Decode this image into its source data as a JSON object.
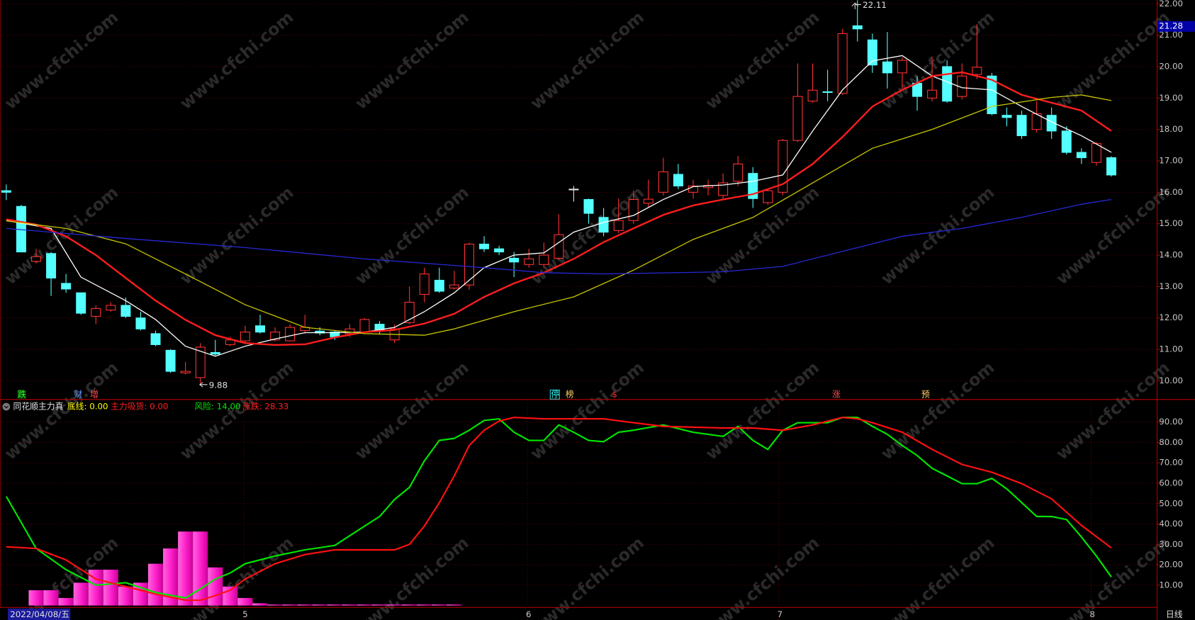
{
  "chart_data": [
    {
      "type": "candlestick",
      "open": [
        16.05,
        15.55,
        13.8,
        14.05,
        13.1,
        12.8,
        12.05,
        12.25,
        12.4,
        12.0,
        11.5,
        10.97,
        10.25,
        10.1,
        10.9,
        11.15,
        11.27,
        11.75,
        11.3,
        11.27,
        11.6,
        11.58,
        11.55,
        11.5,
        11.55,
        11.8,
        11.3,
        11.85,
        12.75,
        13.2,
        12.95,
        13.05,
        14.35,
        14.2,
        13.9,
        13.7,
        13.7,
        13.9,
        16.1,
        15.77,
        15.2,
        14.78,
        15.1,
        15.65,
        16.0,
        16.57,
        16.0,
        16.15,
        15.9,
        16.35,
        16.6,
        15.67,
        16.0,
        17.65,
        18.9,
        19.2,
        19.15,
        21.3,
        20.85,
        20.15,
        19.8,
        19.47,
        19.0,
        20.0,
        19.05,
        19.75,
        19.7,
        18.45,
        18.45,
        18.0,
        18.45,
        17.95,
        17.27,
        16.95,
        17.1
      ],
      "high": [
        16.25,
        15.6,
        14.2,
        14.1,
        13.4,
        12.8,
        12.4,
        12.5,
        12.65,
        12.2,
        11.6,
        11.0,
        10.6,
        11.2,
        11.3,
        11.4,
        11.75,
        12.1,
        11.7,
        11.8,
        12.1,
        11.7,
        11.6,
        11.8,
        12.0,
        11.9,
        11.8,
        13.0,
        13.6,
        13.6,
        13.5,
        14.4,
        14.6,
        14.3,
        14.1,
        14.2,
        14.4,
        15.3,
        16.2,
        15.8,
        15.5,
        15.8,
        16.05,
        16.4,
        17.1,
        16.9,
        16.4,
        16.4,
        16.6,
        17.15,
        16.8,
        16.1,
        17.7,
        20.1,
        20.1,
        19.9,
        21.2,
        22.11,
        21.05,
        21.1,
        20.3,
        19.7,
        20.3,
        20.2,
        20.1,
        21.35,
        19.8,
        18.7,
        18.6,
        18.9,
        18.7,
        18.1,
        17.4,
        17.6,
        17.15
      ],
      "low": [
        15.75,
        14.1,
        13.75,
        12.7,
        12.8,
        12.1,
        11.8,
        12.2,
        12.0,
        11.6,
        11.1,
        10.25,
        10.2,
        9.88,
        10.8,
        11.1,
        11.2,
        11.5,
        11.25,
        11.25,
        11.5,
        11.45,
        11.3,
        11.4,
        11.5,
        11.5,
        11.2,
        11.8,
        12.5,
        12.8,
        12.9,
        12.9,
        14.1,
        14.0,
        13.3,
        13.6,
        13.6,
        13.85,
        15.7,
        15.0,
        14.6,
        14.7,
        15.0,
        15.5,
        15.9,
        16.1,
        15.8,
        15.9,
        15.8,
        16.2,
        15.5,
        15.6,
        15.9,
        17.6,
        18.85,
        18.9,
        19.1,
        20.8,
        19.8,
        19.3,
        19.3,
        18.6,
        18.9,
        18.85,
        18.95,
        19.6,
        18.45,
        18.1,
        17.7,
        17.9,
        17.7,
        17.2,
        16.9,
        16.85,
        16.5
      ],
      "close": [
        16.0,
        14.1,
        13.95,
        13.27,
        12.92,
        12.15,
        12.3,
        12.4,
        12.05,
        11.65,
        11.15,
        10.3,
        10.3,
        11.07,
        10.85,
        11.3,
        11.55,
        11.55,
        11.55,
        11.7,
        11.7,
        11.52,
        11.4,
        11.65,
        11.95,
        11.62,
        11.65,
        12.5,
        13.4,
        12.85,
        13.05,
        14.35,
        14.2,
        14.1,
        13.78,
        13.88,
        14.0,
        14.65,
        16.1,
        15.33,
        14.73,
        15.1,
        15.77,
        15.78,
        16.65,
        16.2,
        16.2,
        16.22,
        16.3,
        16.9,
        15.8,
        16.05,
        17.65,
        19.05,
        19.25,
        19.18,
        21.05,
        21.2,
        20.05,
        19.8,
        20.2,
        19.05,
        19.25,
        18.9,
        19.7,
        19.98,
        18.5,
        18.38,
        17.8,
        18.5,
        17.95,
        17.27,
        17.1,
        17.55,
        16.55
      ],
      "up_color": "#ff3232",
      "down_color": "#54ffff",
      "flat_color": "#e0e0e0",
      "lines": [
        {
          "color": "#ffffff",
          "x": [
            0,
            3,
            5,
            8,
            10,
            12,
            14,
            16,
            18,
            20,
            22,
            24,
            26,
            28,
            30,
            32,
            34,
            36,
            38,
            40,
            42,
            44,
            46,
            48,
            50,
            52,
            54,
            56,
            58,
            60,
            62,
            64,
            66,
            68,
            70,
            72,
            74
          ],
          "values": [
            15.1,
            14.85,
            13.3,
            12.55,
            11.95,
            11.1,
            10.78,
            11.1,
            11.33,
            11.53,
            11.53,
            11.55,
            11.7,
            12.2,
            12.8,
            13.6,
            14.0,
            14.07,
            14.73,
            15.04,
            15.26,
            15.77,
            16.18,
            16.23,
            16.35,
            16.55,
            17.95,
            19.26,
            20.18,
            20.35,
            19.7,
            19.33,
            19.26,
            18.73,
            18.24,
            17.8,
            17.27
          ]
        },
        {
          "color": "#ff1e1e",
          "x": [
            0,
            2,
            4,
            6,
            8,
            10,
            12,
            14,
            16,
            18,
            20,
            22,
            24,
            26,
            28,
            30,
            32,
            34,
            36,
            38,
            40,
            42,
            44,
            46,
            48,
            50,
            52,
            54,
            56,
            58,
            60,
            62,
            64,
            66,
            68,
            70,
            72,
            74
          ],
          "values": [
            15.14,
            14.97,
            14.6,
            14.0,
            13.27,
            12.55,
            11.94,
            11.45,
            11.2,
            11.14,
            11.16,
            11.38,
            11.55,
            11.62,
            11.82,
            12.13,
            12.67,
            13.1,
            13.44,
            13.88,
            14.41,
            14.85,
            15.28,
            15.58,
            15.77,
            15.94,
            16.26,
            16.9,
            17.76,
            18.73,
            19.26,
            19.7,
            19.82,
            19.58,
            19.1,
            18.85,
            18.6,
            17.95
          ]
        },
        {
          "color": "#c8c800",
          "x": [
            0,
            4,
            8,
            12,
            16,
            20,
            24,
            28,
            30,
            34,
            38,
            42,
            46,
            50,
            54,
            58,
            62,
            66,
            70,
            72,
            74
          ],
          "values": [
            15.09,
            14.85,
            14.36,
            13.4,
            12.42,
            11.7,
            11.5,
            11.45,
            11.65,
            12.2,
            12.67,
            13.52,
            14.5,
            15.2,
            16.3,
            17.4,
            18.0,
            18.73,
            19.02,
            19.1,
            18.92
          ]
        },
        {
          "color": "#2828d8",
          "x": [
            0,
            8,
            16,
            24,
            32,
            36,
            40,
            48,
            52,
            56,
            60,
            64,
            68,
            72,
            74
          ],
          "values": [
            14.85,
            14.53,
            14.24,
            13.88,
            13.6,
            13.44,
            13.4,
            13.47,
            13.64,
            14.12,
            14.6,
            14.85,
            15.2,
            15.62,
            15.77
          ]
        }
      ],
      "ylim": [
        9.44,
        22.12
      ],
      "yticks": [
        {
          "value": 10,
          "label": "10.00"
        },
        {
          "value": 11,
          "label": "11.00"
        },
        {
          "value": 12,
          "label": "12.00"
        },
        {
          "value": 13,
          "label": "13.00"
        },
        {
          "value": 14,
          "label": "14.00"
        },
        {
          "value": 15,
          "label": "15.00"
        },
        {
          "value": 16,
          "label": "16.00"
        },
        {
          "value": 17,
          "label": "17.00"
        },
        {
          "value": 18,
          "label": "18.00"
        },
        {
          "value": 19,
          "label": "19.00"
        },
        {
          "value": 20,
          "label": "20.00"
        },
        {
          "value": 21,
          "label": "21.00"
        },
        {
          "value": 22,
          "label": "22.00"
        }
      ],
      "grid": true,
      "price_tag": {
        "value": 21.28,
        "label": "21.28"
      },
      "annotations": [
        "22.11",
        "9.88"
      ],
      "signals": [
        "跌",
        "财",
        "增",
        "停",
        "榜",
        "$",
        "涨",
        "预"
      ]
    },
    {
      "type": "indicator",
      "title": "同花顺主力真",
      "legend": [
        {
          "text": "底线: 0.00",
          "color": "#ffff00"
        },
        {
          "text": "主力吸货: 0.00",
          "color": "#ff2020"
        },
        {
          "text": "风险: 14.00",
          "color": "#00e600"
        },
        {
          "text": "涨跌: 28.33",
          "color": "#ff2020"
        }
      ],
      "histogram": {
        "color": "#ff33cc",
        "values": [
          0,
          0,
          7.5,
          7.5,
          3.7,
          11.2,
          17.6,
          17.6,
          9.3,
          11.2,
          20.5,
          28,
          36.3,
          36.3,
          18.7,
          9.3,
          3.7,
          1.1,
          0.5,
          0.5,
          0.5,
          0.5,
          0.5,
          0.5,
          0.5,
          0.5,
          0.5,
          0.5,
          0.5,
          0.5,
          0.5,
          0,
          0,
          0,
          0,
          0,
          0,
          0,
          0,
          0,
          0,
          0,
          0,
          0,
          0,
          0,
          0,
          0,
          0,
          0,
          0,
          0,
          0,
          0,
          0,
          0,
          0,
          0,
          0,
          0,
          0,
          0,
          0,
          0,
          0,
          0,
          0,
          0,
          0,
          0,
          0,
          0,
          0,
          0,
          0
        ]
      },
      "series": [
        {
          "color": "#00e600",
          "x": [
            0,
            2,
            4,
            6,
            8,
            10,
            12,
            13,
            14,
            15,
            16,
            18,
            20,
            22,
            24,
            25,
            26,
            27,
            28,
            29,
            30,
            31,
            32,
            33,
            34,
            35,
            36,
            37,
            38,
            39,
            40,
            41,
            42,
            44,
            46,
            48,
            49,
            50,
            51,
            52,
            53,
            54,
            55,
            56,
            57,
            58,
            59,
            60,
            61,
            62,
            63,
            64,
            65,
            66,
            67,
            68,
            69,
            70,
            71,
            72,
            73,
            74
          ],
          "values": [
            53.5,
            28,
            17.6,
            10,
            11.2,
            6.4,
            3.7,
            8.2,
            13,
            16,
            20.5,
            24.3,
            27.3,
            29.5,
            39,
            43.7,
            52,
            58,
            71,
            81,
            82,
            86,
            90.8,
            91.6,
            85,
            81,
            81,
            88.6,
            85,
            81,
            80.4,
            85,
            86,
            88.6,
            85,
            83,
            87.9,
            81,
            76.6,
            86,
            89.7,
            89.7,
            89.7,
            92.3,
            92.3,
            87.9,
            84,
            78.5,
            73.6,
            67.3,
            63.6,
            59.8,
            59.8,
            62.4,
            57.2,
            50.5,
            43.7,
            43.7,
            42.2,
            33.6,
            24.3,
            14
          ]
        },
        {
          "color": "#ff1010",
          "x": [
            0,
            2,
            4,
            6,
            8,
            10,
            12,
            13,
            14,
            15,
            16,
            18,
            20,
            22,
            24,
            26,
            27,
            28,
            29,
            30,
            31,
            32,
            33,
            34,
            36,
            40,
            42,
            44,
            48,
            50,
            52,
            54,
            56,
            57,
            58,
            60,
            62,
            64,
            66,
            68,
            70,
            72,
            74
          ],
          "values": [
            28.8,
            28,
            22.4,
            13,
            9.3,
            5.6,
            2.6,
            2.6,
            4.9,
            7.5,
            13,
            20.5,
            25,
            27.3,
            27.3,
            27.3,
            30,
            39,
            50.5,
            63.6,
            78.5,
            86,
            90.5,
            92.3,
            91.6,
            91.6,
            89.7,
            87.9,
            87.1,
            87.1,
            86,
            88.6,
            92.3,
            91.6,
            89.7,
            85,
            76.6,
            69.2,
            65.4,
            59.8,
            52.3,
            39.3,
            28.3
          ]
        }
      ],
      "ylim": [
        -0.75,
        100.9
      ],
      "yticks": [
        {
          "value": 10,
          "label": "10.00"
        },
        {
          "value": 20,
          "label": "20.00"
        },
        {
          "value": 30,
          "label": "30.00"
        },
        {
          "value": 40,
          "label": "40.00"
        },
        {
          "value": 50,
          "label": "50.00"
        },
        {
          "value": 60,
          "label": "60.00"
        },
        {
          "value": 70,
          "label": "70.00"
        },
        {
          "value": 80,
          "label": "80.00"
        },
        {
          "value": 90,
          "label": "90.00"
        }
      ],
      "grid": true
    }
  ],
  "date_axis": {
    "start": "2022/04/08/五",
    "months": [
      "5",
      "6",
      "7",
      "8"
    ],
    "period": "日线"
  },
  "watermark": "www.cfchi.com"
}
